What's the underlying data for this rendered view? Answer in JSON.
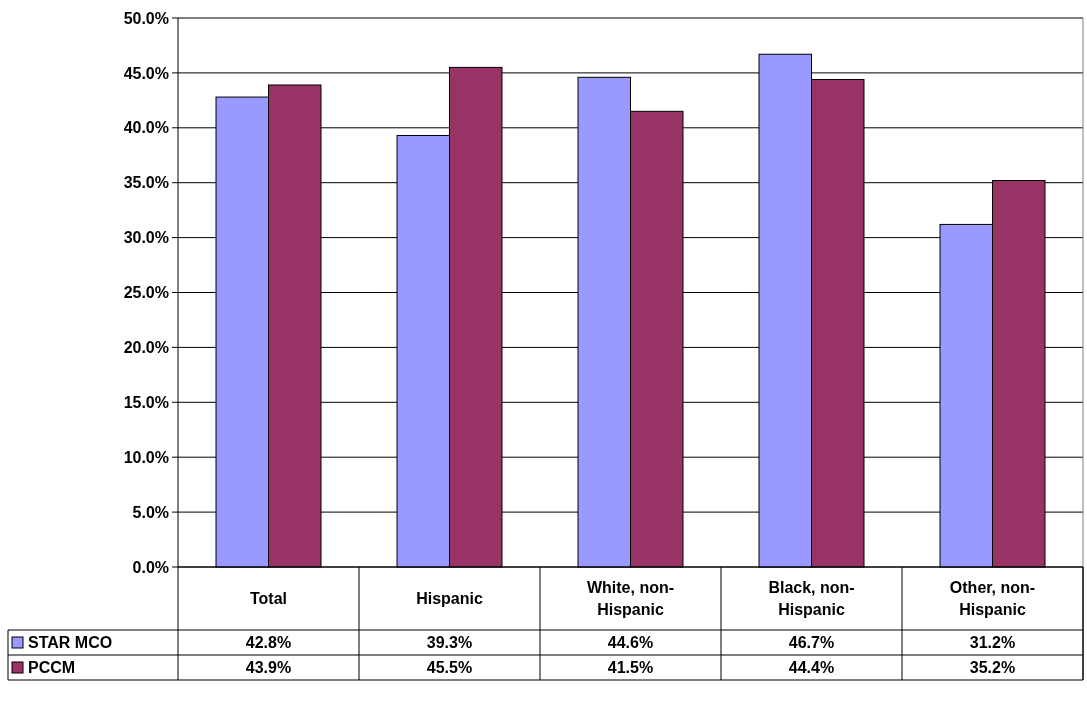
{
  "chart_data": {
    "type": "bar",
    "categories": [
      "Total",
      "Hispanic",
      "White, non-Hispanic",
      "Black, non-Hispanic",
      "Other, non-Hispanic"
    ],
    "series": [
      {
        "name": "STAR MCO",
        "color": "#9999ff",
        "values": [
          42.8,
          39.3,
          44.6,
          46.7,
          31.2
        ],
        "value_labels": [
          "42.8%",
          "39.3%",
          "44.6%",
          "46.7%",
          "31.2%"
        ]
      },
      {
        "name": "PCCM",
        "color": "#993366",
        "values": [
          43.9,
          45.5,
          41.5,
          44.4,
          35.2
        ],
        "value_labels": [
          "43.9%",
          "45.5%",
          "41.5%",
          "44.4%",
          "35.2%"
        ]
      }
    ],
    "ylim": [
      0,
      50
    ],
    "yticks": [
      {
        "value": 0,
        "label": "0.0%"
      },
      {
        "value": 5,
        "label": "5.0%"
      },
      {
        "value": 10,
        "label": "10.0%"
      },
      {
        "value": 15,
        "label": "15.0%"
      },
      {
        "value": 20,
        "label": "20.0%"
      },
      {
        "value": 25,
        "label": "25.0%"
      },
      {
        "value": 30,
        "label": "30.0%"
      },
      {
        "value": 35,
        "label": "35.0%"
      },
      {
        "value": 40,
        "label": "40.0%"
      },
      {
        "value": 45,
        "label": "45.0%"
      },
      {
        "value": 50,
        "label": "50.0%"
      }
    ],
    "grid": "y",
    "legend": "bottom left"
  }
}
